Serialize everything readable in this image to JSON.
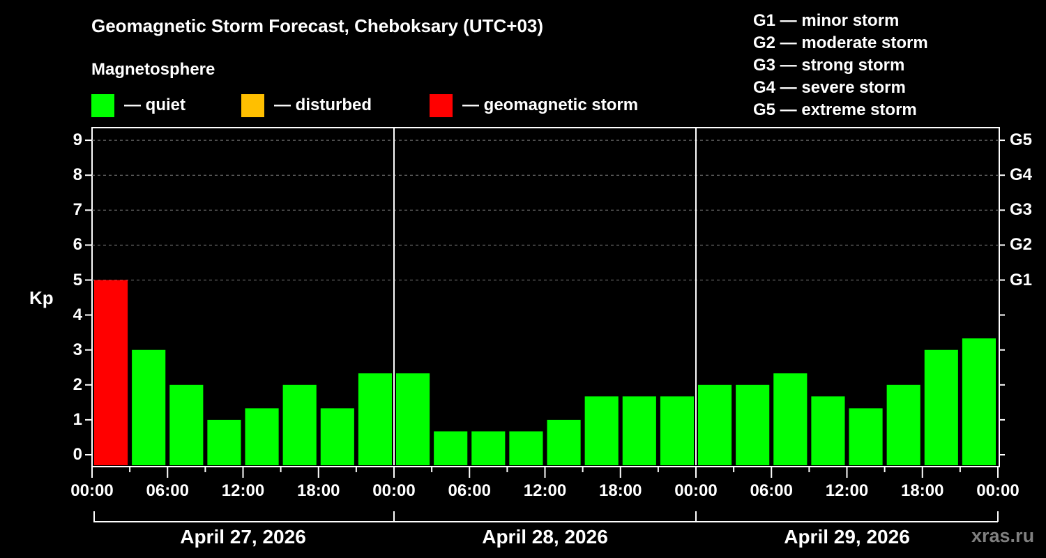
{
  "header": {
    "title": "Geomagnetic Storm Forecast, Cheboksary (UTC+03)",
    "subtitle": "Magnetosphere"
  },
  "legend": [
    {
      "label": "— quiet",
      "color": "#00ff00"
    },
    {
      "label": "— disturbed",
      "color": "#ffbf00"
    },
    {
      "label": "— geomagnetic storm",
      "color": "#ff0000"
    }
  ],
  "g_legend": [
    "G1 — minor storm",
    "G2 — moderate storm",
    "G3 — strong storm",
    "G4 — severe storm",
    "G5 — extreme storm"
  ],
  "watermark": "xras.ru",
  "chart_data": {
    "type": "bar",
    "title": "Geomagnetic Storm Forecast, Cheboksary (UTC+03)",
    "ylabel": "Kp",
    "xlabel": "",
    "ylim": [
      0,
      9
    ],
    "yticks": [
      0,
      1,
      2,
      3,
      4,
      5,
      6,
      7,
      8,
      9
    ],
    "right_axis_ticks": [
      {
        "kp": 5,
        "label": "G1"
      },
      {
        "kp": 6,
        "label": "G2"
      },
      {
        "kp": 7,
        "label": "G3"
      },
      {
        "kp": 8,
        "label": "G4"
      },
      {
        "kp": 9,
        "label": "G5"
      }
    ],
    "grid": "dashed horizontal lines at Kp 5-9",
    "xtick_labels": [
      "00:00",
      "06:00",
      "12:00",
      "18:00",
      "00:00",
      "06:00",
      "12:00",
      "18:00",
      "00:00",
      "06:00",
      "12:00",
      "18:00",
      "00:00"
    ],
    "days": [
      "April 27, 2026",
      "April 28, 2026",
      "April 29, 2026"
    ],
    "interval_hours": 3,
    "categories": [
      "Apr 27 00-03",
      "Apr 27 03-06",
      "Apr 27 06-09",
      "Apr 27 09-12",
      "Apr 27 12-15",
      "Apr 27 15-18",
      "Apr 27 18-21",
      "Apr 27 21-24",
      "Apr 28 00-03",
      "Apr 28 03-06",
      "Apr 28 06-09",
      "Apr 28 09-12",
      "Apr 28 12-15",
      "Apr 28 15-18",
      "Apr 28 18-21",
      "Apr 28 21-24",
      "Apr 29 00-03",
      "Apr 29 03-06",
      "Apr 29 06-09",
      "Apr 29 09-12",
      "Apr 29 12-15",
      "Apr 29 15-18",
      "Apr 29 18-21",
      "Apr 29 21-24"
    ],
    "values": [
      5,
      3,
      2,
      1,
      1.33,
      2,
      1.33,
      2.33,
      2.33,
      0.67,
      0.67,
      0.67,
      1,
      1.67,
      1.67,
      1.67,
      2,
      2,
      2.33,
      1.67,
      1.33,
      2,
      3,
      3.33
    ],
    "colors": [
      "#ff0000",
      "#00ff00",
      "#00ff00",
      "#00ff00",
      "#00ff00",
      "#00ff00",
      "#00ff00",
      "#00ff00",
      "#00ff00",
      "#00ff00",
      "#00ff00",
      "#00ff00",
      "#00ff00",
      "#00ff00",
      "#00ff00",
      "#00ff00",
      "#00ff00",
      "#00ff00",
      "#00ff00",
      "#00ff00",
      "#00ff00",
      "#00ff00",
      "#00ff00",
      "#00ff00"
    ],
    "legend": [
      "quiet",
      "disturbed",
      "geomagnetic storm"
    ]
  }
}
